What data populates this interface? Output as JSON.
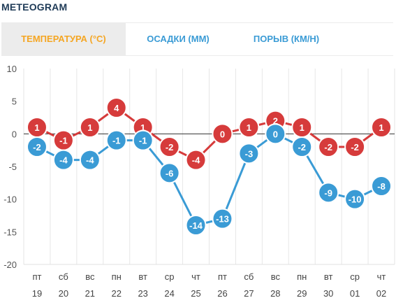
{
  "header": {
    "title": "METEOGRAM"
  },
  "tabs": [
    {
      "label": "ТЕМПЕРАТУРА (°C)",
      "active": true,
      "color": "#f5a623"
    },
    {
      "label": "ОСАДКИ (ММ)",
      "active": false,
      "color": "#3a9bd5"
    },
    {
      "label": "ПОРЫВ (КМ/Н)",
      "active": false,
      "color": "#3a9bd5"
    }
  ],
  "chart_data": {
    "type": "line",
    "categories": [
      {
        "day": "пт",
        "date": "19"
      },
      {
        "day": "сб",
        "date": "20"
      },
      {
        "day": "вс",
        "date": "21"
      },
      {
        "day": "пн",
        "date": "22"
      },
      {
        "day": "вт",
        "date": "23"
      },
      {
        "day": "ср",
        "date": "24"
      },
      {
        "day": "чт",
        "date": "25"
      },
      {
        "day": "пт",
        "date": "26"
      },
      {
        "day": "сб",
        "date": "27"
      },
      {
        "day": "вс",
        "date": "28"
      },
      {
        "day": "пн",
        "date": "29"
      },
      {
        "day": "вт",
        "date": "30"
      },
      {
        "day": "ср",
        "date": "01"
      },
      {
        "day": "чт",
        "date": "02"
      }
    ],
    "series": [
      {
        "color": "#d63b3b",
        "values": [
          1,
          -1,
          1,
          4,
          1,
          -2,
          -4,
          0,
          1,
          2,
          1,
          -2,
          -2,
          1
        ]
      },
      {
        "color": "#3a9bd5",
        "values": [
          -2,
          -4,
          -4,
          -1,
          -1,
          -6,
          -14,
          -13,
          -3,
          0,
          -2,
          -9,
          -10,
          -8
        ]
      }
    ],
    "ylim": [
      -20,
      10
    ],
    "yticks": [
      10,
      5,
      0,
      -5,
      -10,
      -15,
      -20
    ],
    "grid": true,
    "zero_line": true
  }
}
